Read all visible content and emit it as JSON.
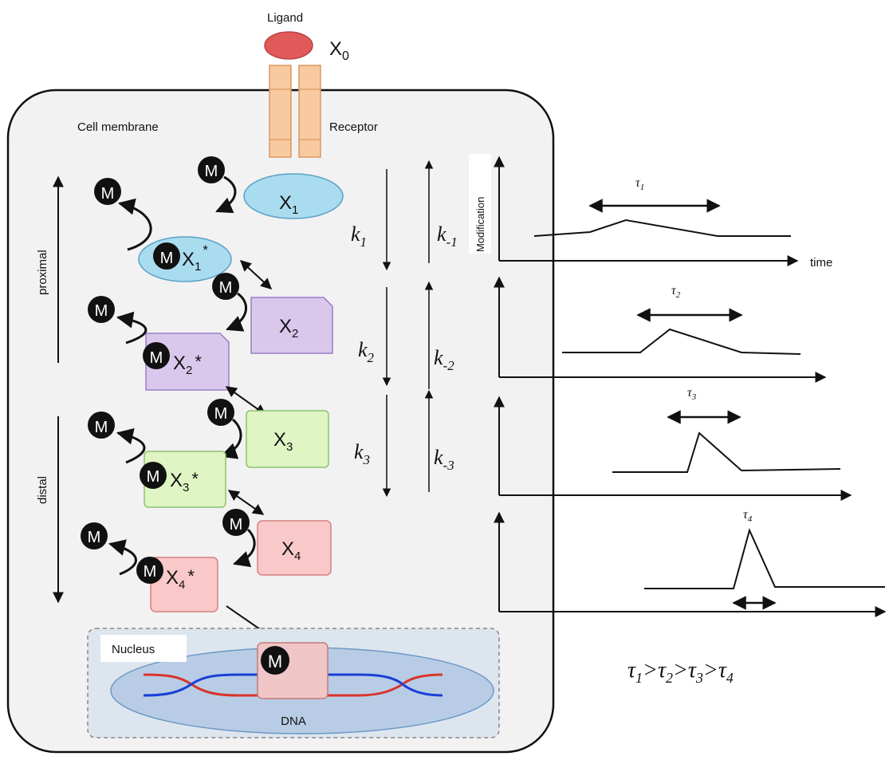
{
  "labels": {
    "ligand": "Ligand",
    "x0": "X",
    "x0_sub": "0",
    "cell_membrane": "Cell membrane",
    "receptor": "Receptor",
    "proximal": "proximal",
    "distal": "distal",
    "nucleus": "Nucleus",
    "dna": "DNA",
    "modification": "Modification",
    "time": "time",
    "m": "M"
  },
  "species": [
    {
      "name": "X",
      "sub": "1"
    },
    {
      "name": "X",
      "sub": "2"
    },
    {
      "name": "X",
      "sub": "3"
    },
    {
      "name": "X",
      "sub": "4"
    }
  ],
  "modified": [
    {
      "name": "X",
      "sub": "1",
      "sup": "*"
    },
    {
      "name": "X",
      "sub": "2",
      "sup": "*"
    },
    {
      "name": "X",
      "sub": "3",
      "sup": "*"
    },
    {
      "name": "X",
      "sub": "4",
      "sup": "*"
    }
  ],
  "rates_forward": [
    {
      "k": "k",
      "sub": "1"
    },
    {
      "k": "k",
      "sub": "2"
    },
    {
      "k": "k",
      "sub": "3"
    }
  ],
  "rates_backward": [
    {
      "k": "k",
      "sub": "-1"
    },
    {
      "k": "k",
      "sub": "-2"
    },
    {
      "k": "k",
      "sub": "-3"
    }
  ],
  "taus": [
    {
      "t": "τ",
      "sub": "1"
    },
    {
      "t": "τ",
      "sub": "2"
    },
    {
      "t": "τ",
      "sub": "3"
    },
    {
      "t": "τ",
      "sub": "4"
    }
  ],
  "inequality": {
    "t": "τ",
    "s1": "1",
    "s2": "2",
    "s3": "3",
    "s4": "4",
    "gt": ">"
  },
  "colors": {
    "cell_bg": "#f2f2f2",
    "ligand": "#e05a5a",
    "receptor": "#f9c9a0",
    "x1": "#a9dcee",
    "x2": "#d9c8ec",
    "x3": "#dff5c4",
    "x4": "#f9c8c8",
    "nucleus_box": "#dde5ee",
    "nucleus": "#b8cde5",
    "dna_red": "#d9342b",
    "dna_blue": "#1a3fd6"
  }
}
